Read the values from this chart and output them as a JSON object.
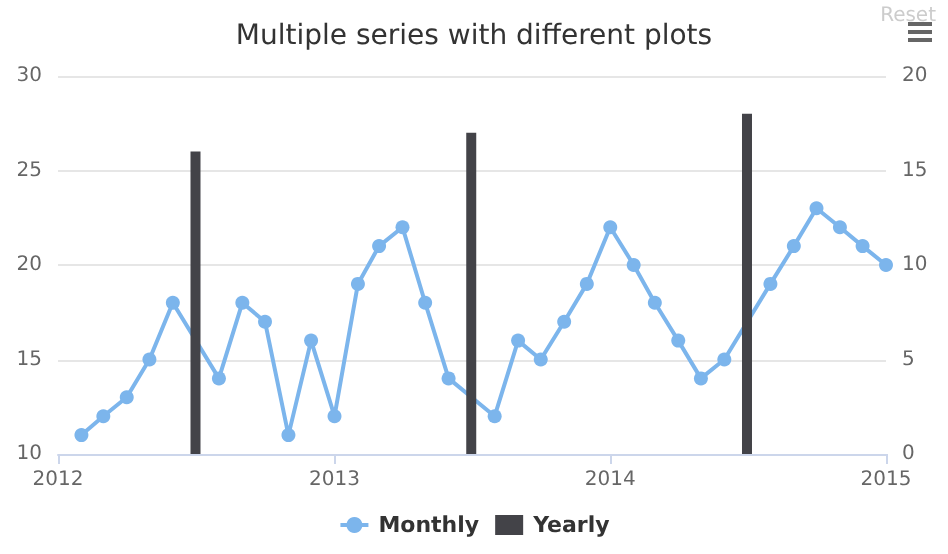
{
  "chart_data": {
    "type": "line",
    "title": "Multiple series with different plots",
    "annotations": [
      "Reset"
    ],
    "xlim": [
      "2012",
      "2015"
    ],
    "xticks": [
      "2012",
      "2013",
      "2014",
      "2015"
    ],
    "ylim": [
      10,
      30
    ],
    "yticks": [
      10,
      15,
      20,
      25,
      30
    ],
    "y2lim": [
      0,
      20
    ],
    "y2ticks": [
      0,
      5,
      10,
      15,
      20
    ],
    "grid": "y",
    "legend": "bottom",
    "marker": "circle",
    "series": [
      {
        "name": "Monthly",
        "color": "#7cb5ec",
        "x": [
          "2012-02",
          "2012-03",
          "2012-04",
          "2012-05",
          "2012-06",
          "2012-07",
          "2012-08",
          "2012-09",
          "2012-10",
          "2012-11",
          "2012-12",
          "2013-01",
          "2013-02",
          "2013-03",
          "2013-04",
          "2013-05",
          "2013-06",
          "2013-07",
          "2013-08",
          "2013-09",
          "2013-10",
          "2013-11",
          "2013-12",
          "2014-01",
          "2014-02",
          "2014-03",
          "2014-04",
          "2014-05",
          "2014-06",
          "2014-07",
          "2014-08",
          "2014-09",
          "2014-10",
          "2014-11",
          "2014-12",
          "2015-01"
        ],
        "values": [
          11,
          12,
          13,
          15,
          18,
          null,
          14,
          18,
          17,
          11,
          16,
          12,
          19,
          21,
          22,
          18,
          14,
          null,
          12,
          16,
          15,
          17,
          19,
          22,
          20,
          18,
          16,
          14,
          15,
          null,
          19,
          21,
          23,
          22,
          21,
          20
        ]
      },
      {
        "name": "Yearly",
        "type": "bar",
        "axis": "y2",
        "color": "#434348",
        "x": [
          "2012-07",
          "2013-07",
          "2014-07"
        ],
        "values": [
          16,
          17,
          18
        ]
      }
    ]
  }
}
